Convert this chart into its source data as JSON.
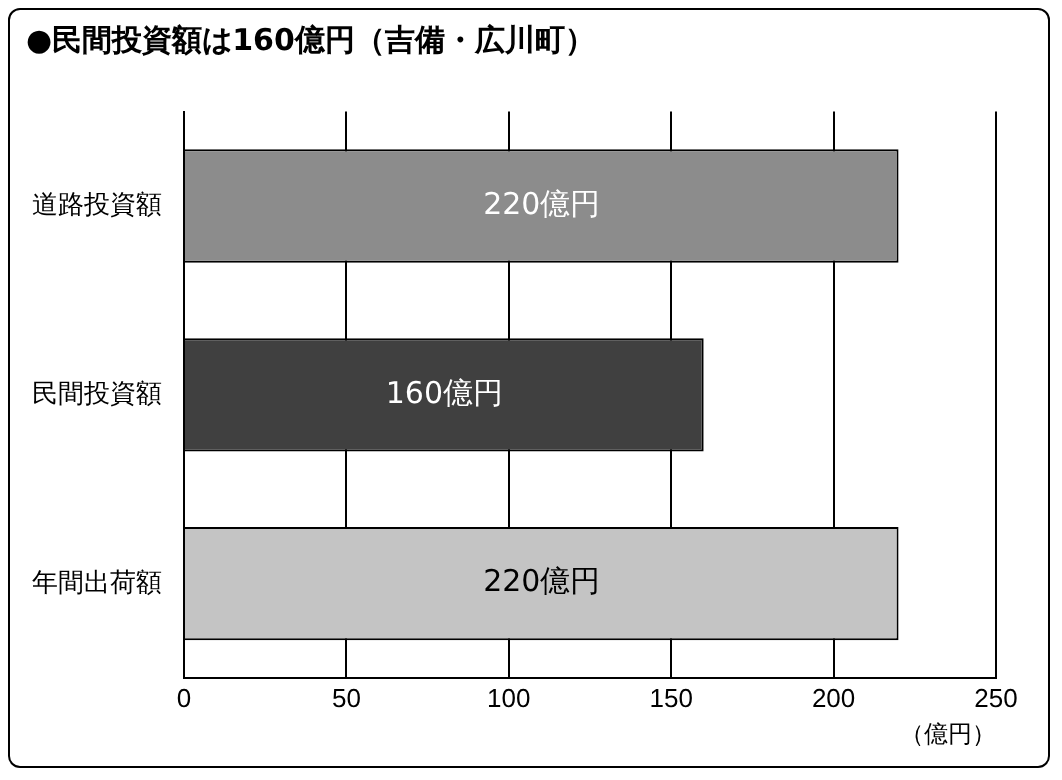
{
  "chart_data": {
    "type": "bar",
    "orientation": "horizontal",
    "title": "●民間投資額は160億円（吉備・広川町）",
    "xlabel": "（億円）",
    "categories": [
      "道路投資額",
      "民間投資額",
      "年間出荷額"
    ],
    "values": [
      220,
      160,
      220
    ],
    "colors": [
      "#8c8c8c",
      "#404040",
      "#c4c4c4"
    ],
    "value_labels": [
      "220億円",
      "160億円",
      "220億円"
    ],
    "xlim": [
      0,
      250
    ],
    "xticks": [
      0,
      50,
      100,
      150,
      200,
      250
    ],
    "grid": "x"
  }
}
